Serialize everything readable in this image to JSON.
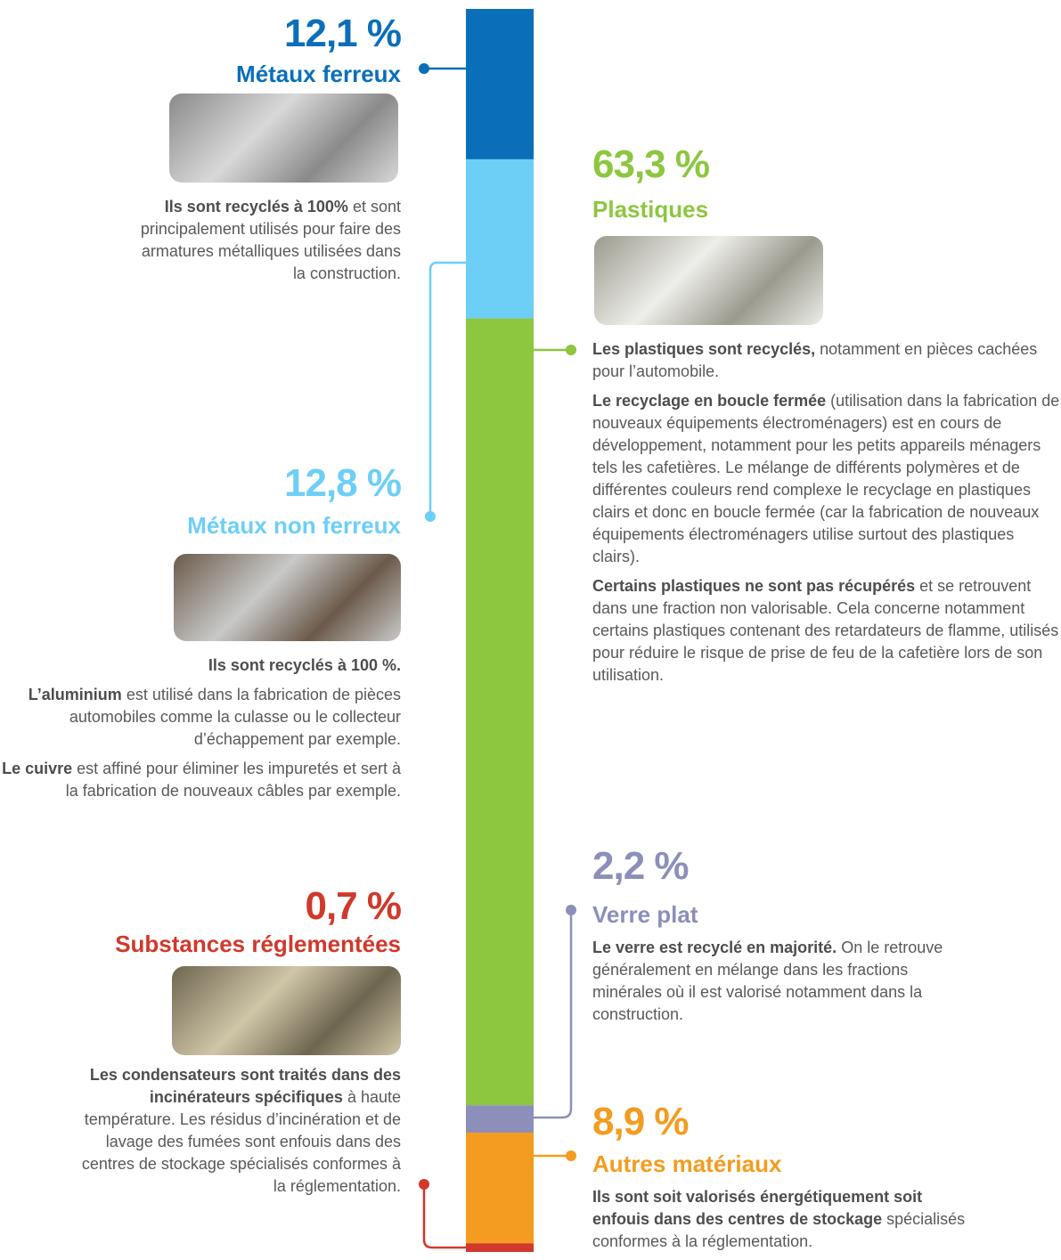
{
  "chart_data": {
    "type": "stacked-bar",
    "segments": [
      {
        "name": "Métaux ferreux",
        "value": 12.1,
        "value_label": "12,1 %",
        "color": "#0a6fb8",
        "paragraphs": [
          [
            {
              "strong": "Ils sont recyclés à 100%"
            },
            {
              "text": "et sont principalement utilisés pour faire des armatures métalliques utilisées dans la construction."
            }
          ]
        ]
      },
      {
        "name": "Métaux non ferreux",
        "value": 12.8,
        "value_label": "12,8 %",
        "color": "#6dcff6",
        "paragraphs": [
          [
            {
              "strong": "Ils sont recyclés à 100 %."
            }
          ],
          [
            {
              "strong": "L’aluminium"
            },
            {
              "text": "est utilisé dans la fabrication de pièces automobiles comme la culasse ou le collecteur d’échappement par exemple."
            }
          ],
          [
            {
              "strong": "Le cuivre"
            },
            {
              "text": "est affiné pour éliminer les impuretés et sert à la fabrication de nouveaux câbles par exemple."
            }
          ]
        ]
      },
      {
        "name": "Plastiques",
        "value": 63.3,
        "value_label": "63,3 %",
        "color": "#8dc63f",
        "paragraphs": [
          [
            {
              "strong": "Les plastiques sont recyclés,"
            },
            {
              "text": "notamment en pièces cachées pour l’automobile."
            }
          ],
          [
            {
              "strong": "Le recyclage en boucle fermée"
            },
            {
              "text": "(utilisation dans la fabrication de nouveaux équipements électroménagers) est en cours de développement, notamment pour les petits appareils ménagers tels les cafetières. Le mélange de différents polymères et de différentes couleurs rend complexe le recyclage en plastiques clairs et donc en boucle fermée (car la fabrication de nouveaux équipements électroménagers utilise surtout des plastiques clairs)."
            }
          ],
          [
            {
              "strong": "Certains plastiques ne sont pas récupérés"
            },
            {
              "text": "et se retrouvent dans une fraction non valorisable. Cela concerne notamment certains plastiques contenant des retardateurs de flamme, utilisés pour réduire le risque de prise de feu de la cafetière lors de son utilisation."
            }
          ]
        ]
      },
      {
        "name": "Verre plat",
        "value": 2.2,
        "value_label": "2,2 %",
        "color": "#8c8fba",
        "paragraphs": [
          [
            {
              "strong": "Le verre est recyclé en majorité."
            },
            {
              "text": "On le retrouve généralement en mélange dans les fractions minérales où il est valorisé notamment dans la construction."
            }
          ]
        ]
      },
      {
        "name": "Autres matériaux",
        "value": 8.9,
        "value_label": "8,9 %",
        "color": "#f39c1f",
        "paragraphs": [
          [
            {
              "strong": "Ils sont soit valorisés énergétiquement soit enfouis dans des centres de stockage"
            },
            {
              "text": "spécialisés conformes à la réglementation."
            }
          ]
        ]
      },
      {
        "name": "Substances réglementées",
        "value": 0.7,
        "value_label": "0,7 %",
        "color": "#d0392b",
        "paragraphs": [
          [
            {
              "strong": "Les condensateurs sont traités dans des incinérateurs spécifiques"
            },
            {
              "text": "à haute température. Les résidus d’incinération et de lavage des fumées sont enfouis dans des centres de stockage spécialisés conformes à la réglementation."
            }
          ]
        ]
      }
    ]
  }
}
